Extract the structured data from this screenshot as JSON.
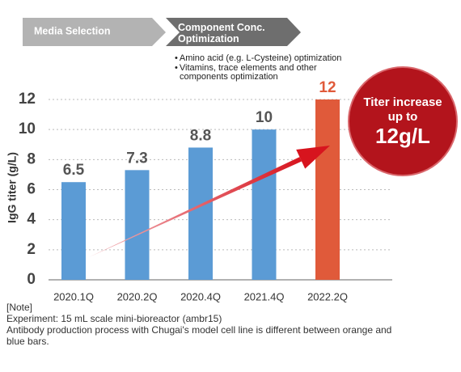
{
  "header": {
    "phases": [
      "Media Selection",
      "Component Conc. Optimization"
    ],
    "bullets": [
      "Amino acid (e.g. L-Cysteine) optimization",
      "Vitamins, trace elements and other components optimization"
    ]
  },
  "chart_data": {
    "type": "bar",
    "y_label": "IgG titer (g/L)",
    "categories": [
      "2020.1Q",
      "2020.2Q",
      "2020.4Q",
      "2021.4Q",
      "2022.2Q"
    ],
    "values": [
      6.5,
      7.3,
      8.8,
      10,
      12
    ],
    "colors": [
      "#5b9bd5",
      "#5b9bd5",
      "#5b9bd5",
      "#5b9bd5",
      "#e05a3a"
    ],
    "ylim": [
      0,
      12
    ],
    "yticks": [
      0,
      2,
      4,
      6,
      8,
      10,
      12
    ],
    "grid": true
  },
  "callout": {
    "lines": [
      "Titer increase",
      "up to",
      "12g/L"
    ]
  },
  "notes": {
    "heading": "[Note]",
    "lines": [
      "Experiment: 15 mL scale mini-bioreactor (ambr15)",
      "Antibody production process with Chugai's model cell line is different between orange and blue bars."
    ]
  }
}
